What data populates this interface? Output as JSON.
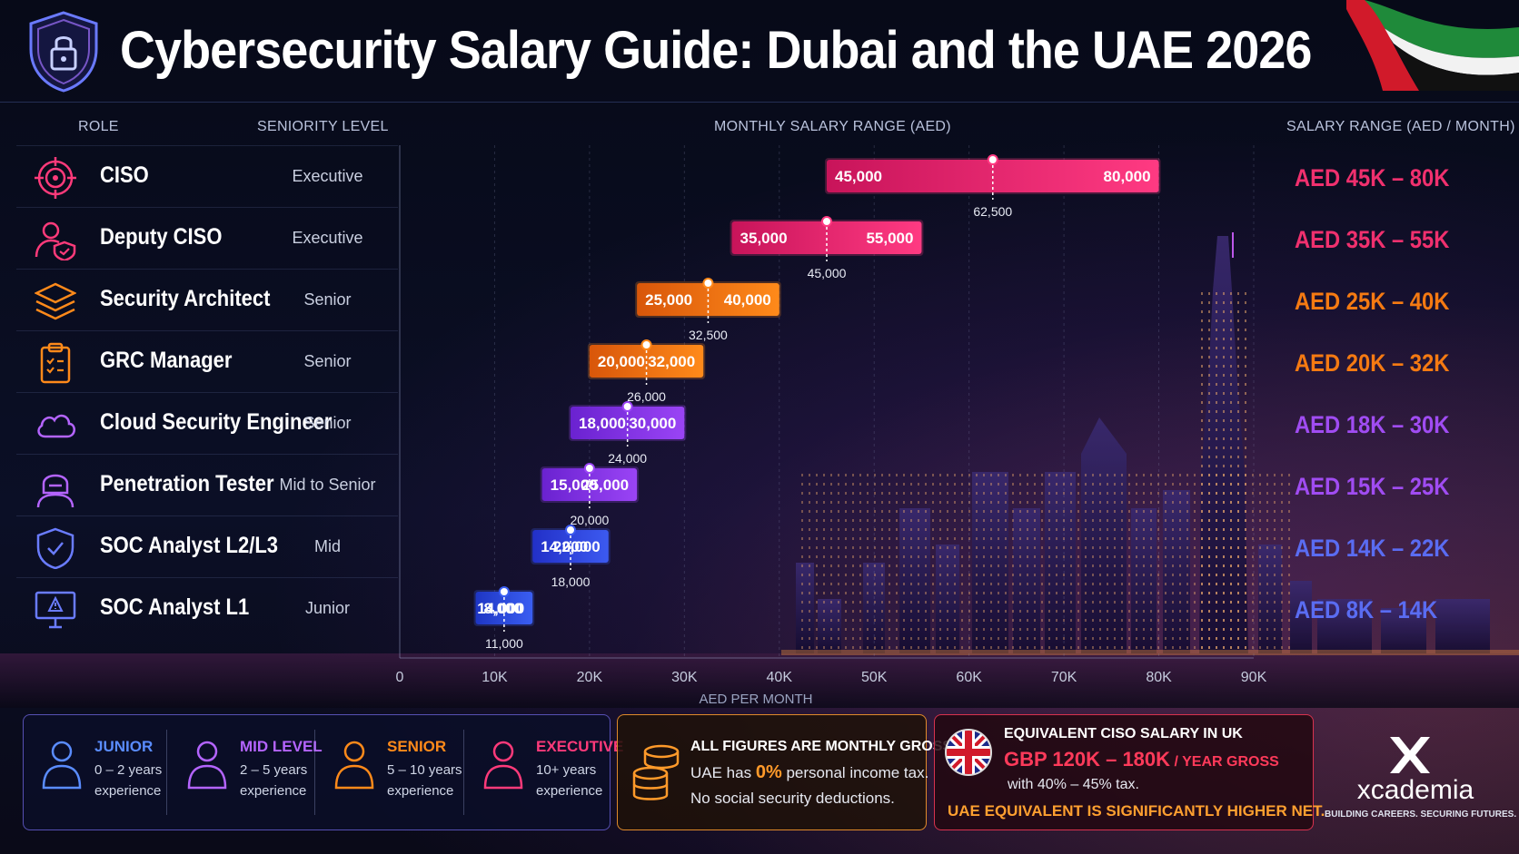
{
  "title": "Cybersecurity Salary Guide: Dubai and the UAE 2026",
  "columns": {
    "role": "ROLE",
    "seniority": "SENIORITY LEVEL",
    "monthly": "MONTHLY SALARY RANGE (AED)",
    "range": "SALARY RANGE (AED / MONTH)"
  },
  "colors": {
    "executive": "#f0306e",
    "senior": "#f57a12",
    "mid_senior": "#8d3cf0",
    "mid": "#3046e6",
    "junior": "#2f52e0"
  },
  "roles": [
    {
      "name": "CISO",
      "level": "Executive",
      "icon": "target-icon",
      "color": "#f0306e",
      "range_label": "AED 45K – 80K"
    },
    {
      "name": "Deputy CISO",
      "level": "Executive",
      "icon": "user-shield-icon",
      "color": "#f0306e",
      "range_label": "AED 35K – 55K"
    },
    {
      "name": "Security Architect",
      "level": "Senior",
      "icon": "layers-icon",
      "color": "#f57a12",
      "range_label": "AED 25K – 40K"
    },
    {
      "name": "GRC Manager",
      "level": "Senior",
      "icon": "clipboard-icon",
      "color": "#f57a12",
      "range_label": "AED 20K – 32K"
    },
    {
      "name": "Cloud Security Engineer",
      "level": "Senior",
      "icon": "cloud-icon",
      "color": "#a04cf2",
      "range_label": "AED 18K – 30K"
    },
    {
      "name": "Penetration Tester",
      "level": "Mid to Senior",
      "icon": "hacker-icon",
      "color": "#a04cf2",
      "range_label": "AED 15K – 25K"
    },
    {
      "name": "SOC Analyst L2/L3",
      "level": "Mid",
      "icon": "shield-check-icon",
      "color": "#5a6cf2",
      "range_label": "AED 14K – 22K"
    },
    {
      "name": "SOC Analyst L1",
      "level": "Junior",
      "icon": "monitor-alert-icon",
      "color": "#5a6cf2",
      "range_label": "AED  8K – 14K"
    }
  ],
  "chart_data": {
    "type": "bar",
    "subtype": "floating-range",
    "title": "MONTHLY SALARY RANGE (AED)",
    "xlabel": "AED PER MONTH",
    "xlim": [
      0,
      90000
    ],
    "xticks": [
      0,
      10000,
      20000,
      30000,
      40000,
      50000,
      60000,
      70000,
      80000,
      90000
    ],
    "xtick_labels": [
      "0",
      "10K",
      "20K",
      "30K",
      "40K",
      "50K",
      "60K",
      "70K",
      "80K",
      "90K"
    ],
    "categories": [
      "CISO",
      "Deputy CISO",
      "Security Architect",
      "GRC Manager",
      "Cloud Security Engineer",
      "Penetration Tester",
      "SOC Analyst L2/L3",
      "SOC Analyst L1"
    ],
    "series": [
      {
        "name": "min",
        "values": [
          45000,
          35000,
          25000,
          20000,
          18000,
          15000,
          14000,
          8000
        ]
      },
      {
        "name": "max",
        "values": [
          80000,
          55000,
          40000,
          32000,
          30000,
          25000,
          22000,
          14000
        ]
      },
      {
        "name": "midpoint",
        "values": [
          62500,
          45000,
          32500,
          26000,
          24000,
          20000,
          18000,
          11000
        ]
      }
    ],
    "min_labels": [
      "45,000",
      "35,000",
      "25,000",
      "20,000",
      "18,000",
      "15,000",
      "14,000",
      "8,000"
    ],
    "max_labels": [
      "80,000",
      "55,000",
      "40,000",
      "32,000",
      "30,000",
      "25,000",
      "22,000",
      "14,000"
    ],
    "mid_labels": [
      "62,500",
      "45,000",
      "32,500",
      "26,000",
      "24,000",
      "20,000",
      "18,000",
      "11,000"
    ],
    "bar_colors": [
      [
        "#c8145a",
        "#ff3a82"
      ],
      [
        "#c8145a",
        "#ff3a82"
      ],
      [
        "#d8560a",
        "#ff8a1a"
      ],
      [
        "#d8560a",
        "#ff8a1a"
      ],
      [
        "#6a22d0",
        "#9a44f5"
      ],
      [
        "#6a22d0",
        "#9a44f5"
      ],
      [
        "#2230c8",
        "#3c5af0"
      ],
      [
        "#1e36c4",
        "#3a5ef2"
      ]
    ]
  },
  "legend": [
    {
      "title": "JUNIOR",
      "line1": "0 – 2 years",
      "line2": "experience",
      "color": "#5a8cff",
      "icon": "person-icon"
    },
    {
      "title": "MID LEVEL",
      "line1": "2 – 5 years",
      "line2": "experience",
      "color": "#b464ff",
      "icon": "person-icon"
    },
    {
      "title": "SENIOR",
      "line1": "5 – 10 years",
      "line2": "experience",
      "color": "#ff8a1a",
      "icon": "person-icon"
    },
    {
      "title": "EXECUTIVE",
      "line1": "10+ years",
      "line2": "experience",
      "color": "#ff3a7a",
      "icon": "person-icon"
    }
  ],
  "gross": {
    "title": "ALL FIGURES ARE MONTHLY GROSS",
    "line1_pre": "UAE has",
    "line1_pct": "0%",
    "line1_post": "personal income tax.",
    "line2": "No social security deductions."
  },
  "uk": {
    "title": "EQUIVALENT CISO SALARY IN UK",
    "salary": "GBP 120K – 180K",
    "salary_suffix": "/ YEAR GROSS",
    "tax": "with 40% – 45% tax.",
    "footer": "UAE EQUIVALENT IS SIGNIFICANTLY HIGHER NET."
  },
  "brand": {
    "name": "xcademia",
    "tagline": "BUILDING CAREERS. SECURING FUTURES."
  }
}
